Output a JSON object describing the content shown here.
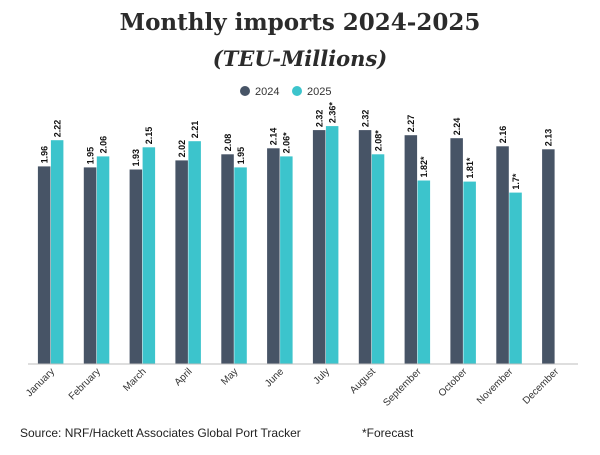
{
  "chart_data": {
    "type": "bar",
    "title": "Monthly imports 2024-2025",
    "subtitle": "(TEU-Millions)",
    "categories": [
      "January",
      "February",
      "March",
      "April",
      "May",
      "June",
      "July",
      "August",
      "September",
      "October",
      "November",
      "December"
    ],
    "series": [
      {
        "name": "2024",
        "color": "#475466",
        "values": [
          1.96,
          1.95,
          1.93,
          2.02,
          2.08,
          2.14,
          2.32,
          2.32,
          2.27,
          2.24,
          2.16,
          2.13
        ],
        "labels": [
          "1.96",
          "1.95",
          "1.93",
          "2.02",
          "2.08",
          "2.14",
          "2.32",
          "2.32",
          "2.27",
          "2.24",
          "2.16",
          "2.13"
        ]
      },
      {
        "name": "2025",
        "color": "#3cc4cc",
        "values": [
          2.22,
          2.06,
          2.15,
          2.21,
          1.95,
          2.06,
          2.36,
          2.08,
          1.82,
          1.81,
          1.7,
          null
        ],
        "labels": [
          "2.22",
          "2.06",
          "2.15",
          "2.21",
          "1.95",
          "2.06*",
          "2.36*",
          "2.08*",
          "1.82*",
          "1.81*",
          "1.7*",
          null
        ]
      }
    ],
    "xlabel": "",
    "ylabel": "",
    "ylim": [
      0,
      2.5
    ],
    "grid": false,
    "legend": "top-center",
    "source": "Source: NRF/Hackett Associates Global Port Tracker",
    "footnote": "*Forecast"
  }
}
